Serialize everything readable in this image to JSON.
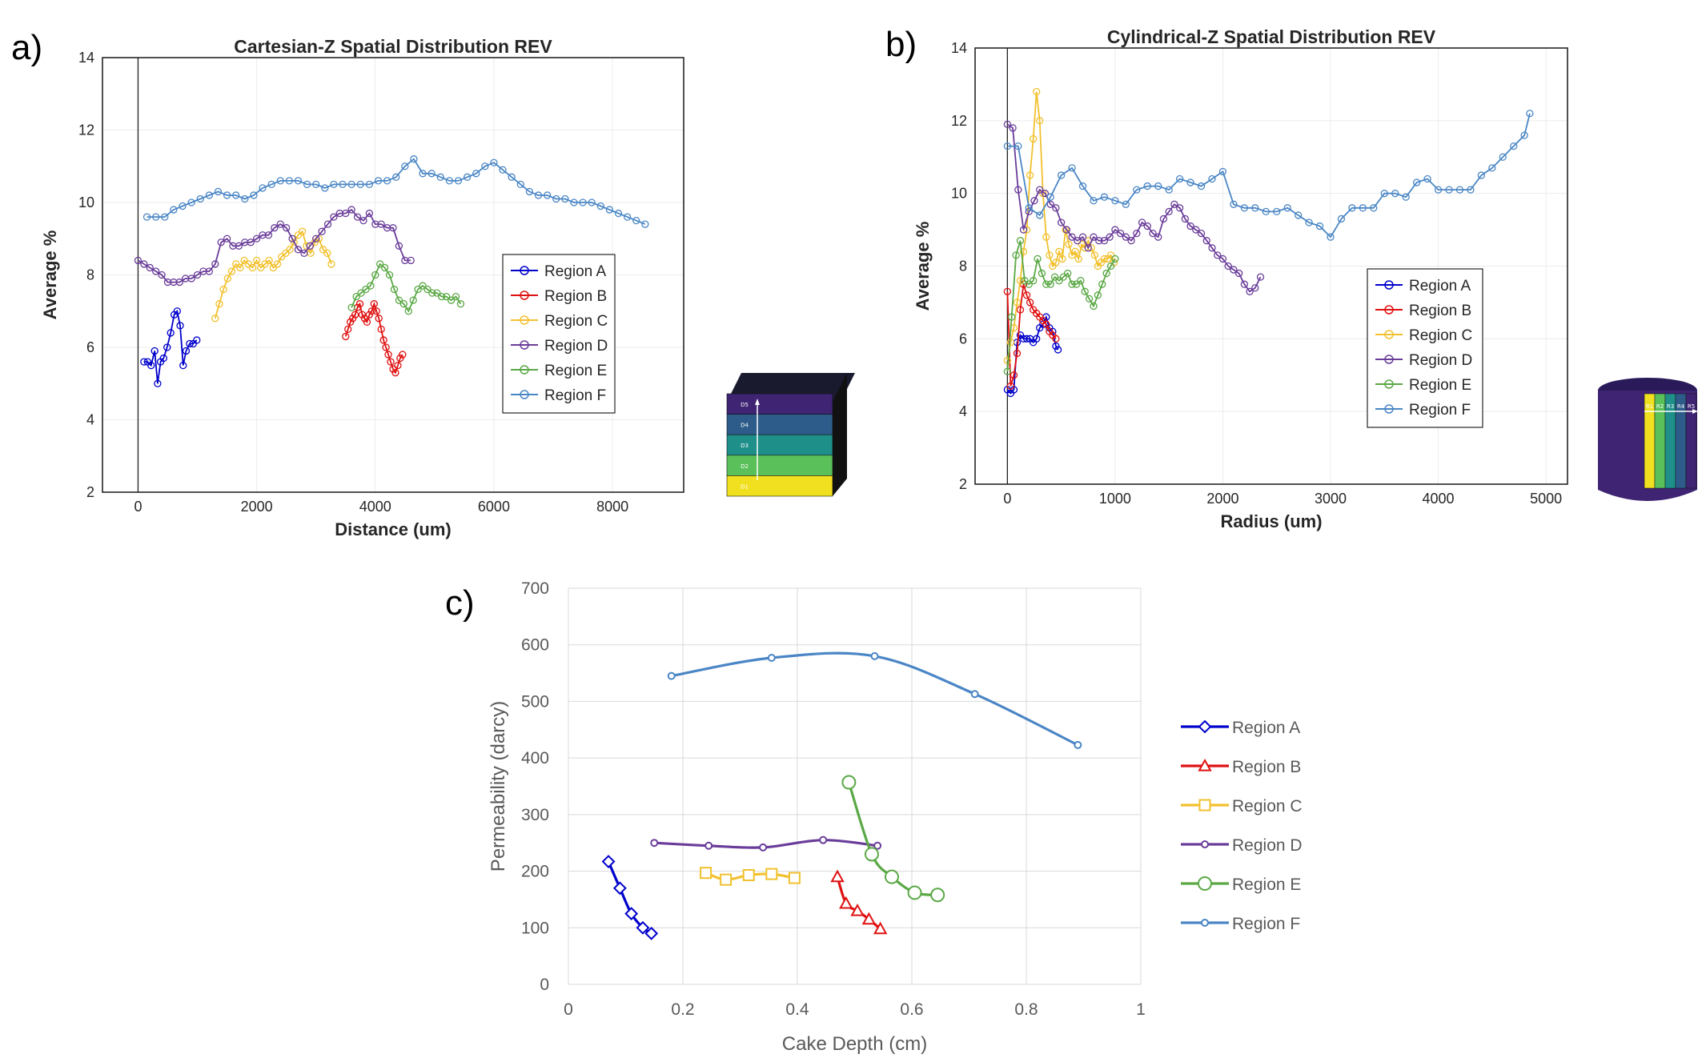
{
  "panel_letters": {
    "a": "a)",
    "b": "b)",
    "c": "c)"
  },
  "colors": {
    "Region A": "#0000cc",
    "Region B": "#e01010",
    "Region C": "#f2c12e",
    "Region D": "#6a3d9a",
    "Region E": "#5aa845",
    "Region F": "#4a86c5"
  },
  "illustrations": {
    "a": {
      "layer_labels": [
        "D5",
        "D4",
        "D3",
        "D2",
        "D1"
      ],
      "layer_colors": [
        "#3e2473",
        "#2e5c8a",
        "#1f8f8a",
        "#5ac05a",
        "#f0e020"
      ]
    },
    "b": {
      "ring_labels": [
        "R1",
        "R2",
        "R3",
        "R4",
        "R5"
      ],
      "ring_colors": [
        "#f0e020",
        "#5ac05a",
        "#1f8f8a",
        "#2e5c8a",
        "#3e2473"
      ]
    }
  },
  "chart_data": [
    {
      "type": "line",
      "title": "Cartesian-Z Spatial Distribution REV",
      "xlabel": "Distance (um)",
      "ylabel": "Average %",
      "xlim": [
        -600,
        9200
      ],
      "ylim": [
        2,
        14
      ],
      "xticks": [
        0,
        2000,
        4000,
        6000,
        8000
      ],
      "yticks": [
        2,
        4,
        6,
        8,
        10,
        12,
        14
      ],
      "grid": true,
      "legend_position": "right",
      "series": [
        {
          "name": "Region A",
          "x": [
            100,
            160,
            220,
            280,
            330,
            380,
            430,
            490,
            550,
            610,
            660,
            710,
            760,
            810,
            870,
            930,
            990
          ],
          "y": [
            5.6,
            5.6,
            5.5,
            5.9,
            5.0,
            5.6,
            5.7,
            6.0,
            6.4,
            6.9,
            7.0,
            6.6,
            5.5,
            5.9,
            6.1,
            6.1,
            6.2
          ]
        },
        {
          "name": "Region B",
          "x": [
            3500,
            3540,
            3580,
            3620,
            3660,
            3700,
            3740,
            3780,
            3820,
            3860,
            3900,
            3940,
            3980,
            4020,
            4060,
            4100,
            4140,
            4180,
            4220,
            4260,
            4300,
            4340,
            4380,
            4420,
            4460
          ],
          "y": [
            6.3,
            6.5,
            6.7,
            6.8,
            6.9,
            7.1,
            7.2,
            6.9,
            6.8,
            6.7,
            6.9,
            7.0,
            7.2,
            7.0,
            6.8,
            6.5,
            6.2,
            6.0,
            5.8,
            5.6,
            5.4,
            5.3,
            5.5,
            5.7,
            5.8
          ]
        },
        {
          "name": "Region C",
          "x": [
            1300,
            1370,
            1440,
            1510,
            1580,
            1650,
            1720,
            1790,
            1860,
            1930,
            2000,
            2070,
            2140,
            2210,
            2280,
            2350,
            2420,
            2490,
            2560,
            2630,
            2700,
            2770,
            2840,
            2910,
            2980,
            3050,
            3120,
            3190,
            3260
          ],
          "y": [
            6.8,
            7.2,
            7.6,
            7.9,
            8.1,
            8.3,
            8.2,
            8.4,
            8.3,
            8.2,
            8.4,
            8.2,
            8.3,
            8.4,
            8.2,
            8.3,
            8.5,
            8.6,
            8.7,
            8.9,
            9.1,
            9.2,
            8.8,
            8.6,
            8.9,
            9.0,
            8.7,
            8.6,
            8.3
          ]
        },
        {
          "name": "Region D",
          "x": [
            0,
            100,
            200,
            300,
            400,
            500,
            600,
            700,
            800,
            900,
            1000,
            1100,
            1200,
            1300,
            1400,
            1500,
            1600,
            1700,
            1800,
            1900,
            2000,
            2100,
            2200,
            2300,
            2400,
            2500,
            2600,
            2700,
            2800,
            2900,
            3000,
            3100,
            3200,
            3300,
            3400,
            3500,
            3600,
            3700,
            3800,
            3900,
            4000,
            4100,
            4200,
            4300,
            4400,
            4500,
            4600
          ],
          "y": [
            8.4,
            8.3,
            8.2,
            8.1,
            8.0,
            7.8,
            7.8,
            7.8,
            7.9,
            7.9,
            8.0,
            8.1,
            8.1,
            8.3,
            8.9,
            9.0,
            8.8,
            8.8,
            8.9,
            8.9,
            9.0,
            9.1,
            9.1,
            9.3,
            9.4,
            9.3,
            9.0,
            8.7,
            8.6,
            8.8,
            9.0,
            9.2,
            9.4,
            9.6,
            9.7,
            9.7,
            9.8,
            9.6,
            9.5,
            9.7,
            9.4,
            9.4,
            9.3,
            9.3,
            8.8,
            8.4,
            8.4
          ]
        },
        {
          "name": "Region E",
          "x": [
            3600,
            3680,
            3760,
            3840,
            3920,
            4000,
            4080,
            4160,
            4240,
            4320,
            4400,
            4480,
            4560,
            4640,
            4720,
            4800,
            4880,
            4960,
            5040,
            5120,
            5200,
            5280,
            5360,
            5440
          ],
          "y": [
            7.1,
            7.4,
            7.5,
            7.6,
            7.7,
            8.0,
            8.3,
            8.2,
            8.0,
            7.6,
            7.3,
            7.2,
            7.0,
            7.3,
            7.6,
            7.7,
            7.6,
            7.5,
            7.5,
            7.4,
            7.4,
            7.3,
            7.4,
            7.2
          ]
        },
        {
          "name": "Region F",
          "x": [
            150,
            300,
            450,
            600,
            750,
            900,
            1050,
            1200,
            1350,
            1500,
            1650,
            1800,
            1950,
            2100,
            2250,
            2400,
            2550,
            2700,
            2850,
            3000,
            3150,
            3300,
            3450,
            3600,
            3750,
            3900,
            4050,
            4200,
            4350,
            4500,
            4650,
            4800,
            4950,
            5100,
            5250,
            5400,
            5550,
            5700,
            5850,
            6000,
            6150,
            6300,
            6450,
            6600,
            6750,
            6900,
            7050,
            7200,
            7350,
            7500,
            7650,
            7800,
            7950,
            8100,
            8250,
            8400,
            8550
          ],
          "y": [
            9.6,
            9.6,
            9.6,
            9.8,
            9.9,
            10.0,
            10.1,
            10.2,
            10.3,
            10.2,
            10.2,
            10.1,
            10.2,
            10.4,
            10.5,
            10.6,
            10.6,
            10.6,
            10.5,
            10.5,
            10.4,
            10.5,
            10.5,
            10.5,
            10.5,
            10.5,
            10.6,
            10.6,
            10.7,
            11.0,
            11.2,
            10.8,
            10.8,
            10.7,
            10.6,
            10.6,
            10.7,
            10.8,
            11.0,
            11.1,
            10.9,
            10.7,
            10.5,
            10.3,
            10.2,
            10.2,
            10.1,
            10.1,
            10.0,
            10.0,
            10.0,
            9.9,
            9.8,
            9.7,
            9.6,
            9.5,
            9.4
          ]
        }
      ]
    },
    {
      "type": "line",
      "title": "Cylindrical-Z  Spatial Distribution REV",
      "xlabel": "Radius (um)",
      "ylabel": "Average %",
      "xlim": [
        -300,
        5200
      ],
      "ylim": [
        2,
        14
      ],
      "xticks": [
        0,
        1000,
        2000,
        3000,
        4000,
        5000
      ],
      "yticks": [
        2,
        4,
        6,
        8,
        10,
        12,
        14
      ],
      "grid": true,
      "legend_position": "right",
      "series": [
        {
          "name": "Region A",
          "x": [
            0,
            30,
            60,
            90,
            120,
            150,
            180,
            210,
            240,
            270,
            300,
            330,
            360,
            390,
            420,
            450,
            470
          ],
          "y": [
            4.6,
            4.5,
            4.6,
            5.9,
            6.1,
            6.0,
            6.0,
            6.0,
            5.9,
            6.0,
            6.3,
            6.4,
            6.6,
            6.3,
            6.2,
            5.8,
            5.7
          ]
        },
        {
          "name": "Region B",
          "x": [
            0,
            30,
            60,
            90,
            120,
            150,
            180,
            210,
            240,
            270,
            300,
            330,
            360,
            390,
            420,
            450
          ],
          "y": [
            7.3,
            4.7,
            5.0,
            5.6,
            6.8,
            7.5,
            7.2,
            7.0,
            6.8,
            6.7,
            6.6,
            6.5,
            6.4,
            6.2,
            6.1,
            6.0
          ]
        },
        {
          "name": "Region C",
          "x": [
            0,
            30,
            60,
            90,
            120,
            150,
            180,
            210,
            240,
            270,
            300,
            330,
            360,
            390,
            420,
            450,
            480,
            510,
            540,
            570,
            600,
            630,
            660,
            690,
            720,
            750,
            780,
            810,
            840,
            870,
            900,
            930,
            960,
            990
          ],
          "y": [
            5.4,
            5.9,
            6.3,
            7.0,
            7.6,
            8.4,
            9.0,
            10.5,
            11.5,
            12.8,
            12.0,
            10.0,
            8.8,
            8.3,
            8.0,
            8.1,
            8.4,
            8.2,
            9.0,
            8.6,
            8.3,
            8.4,
            8.2,
            8.6,
            8.5,
            8.7,
            8.5,
            8.3,
            8.0,
            8.1,
            8.2,
            8.2,
            8.3,
            8.1
          ]
        },
        {
          "name": "Region D",
          "x": [
            0,
            50,
            100,
            150,
            200,
            250,
            300,
            350,
            400,
            450,
            500,
            550,
            600,
            650,
            700,
            750,
            800,
            850,
            900,
            950,
            1000,
            1050,
            1100,
            1150,
            1200,
            1250,
            1300,
            1350,
            1400,
            1450,
            1500,
            1550,
            1600,
            1650,
            1700,
            1750,
            1800,
            1850,
            1900,
            1950,
            2000,
            2050,
            2100,
            2150,
            2200,
            2250,
            2300,
            2350
          ],
          "y": [
            11.9,
            11.8,
            10.1,
            9.0,
            9.5,
            9.8,
            10.1,
            10.0,
            9.7,
            9.6,
            9.2,
            9.0,
            8.8,
            8.7,
            8.8,
            8.5,
            8.8,
            8.7,
            8.7,
            8.8,
            9.0,
            8.9,
            8.8,
            8.7,
            8.9,
            9.2,
            9.1,
            8.9,
            8.8,
            9.3,
            9.5,
            9.7,
            9.6,
            9.3,
            9.1,
            9.0,
            8.9,
            8.7,
            8.5,
            8.3,
            8.2,
            8.0,
            7.9,
            7.8,
            7.5,
            7.3,
            7.4,
            7.7
          ]
        },
        {
          "name": "Region E",
          "x": [
            0,
            40,
            80,
            120,
            160,
            200,
            240,
            280,
            320,
            360,
            400,
            440,
            480,
            520,
            560,
            600,
            640,
            680,
            720,
            760,
            800,
            840,
            880,
            920,
            960,
            1000
          ],
          "y": [
            5.1,
            6.6,
            8.3,
            8.7,
            7.6,
            7.5,
            7.6,
            8.2,
            7.8,
            7.5,
            7.5,
            7.7,
            7.6,
            7.7,
            7.8,
            7.5,
            7.5,
            7.6,
            7.3,
            7.1,
            6.9,
            7.2,
            7.5,
            7.8,
            8.0,
            8.2
          ]
        },
        {
          "name": "Region F",
          "x": [
            0,
            100,
            200,
            300,
            400,
            500,
            600,
            700,
            800,
            900,
            1000,
            1100,
            1200,
            1300,
            1400,
            1500,
            1600,
            1700,
            1800,
            1900,
            2000,
            2100,
            2200,
            2300,
            2400,
            2500,
            2600,
            2700,
            2800,
            2900,
            3000,
            3100,
            3200,
            3300,
            3400,
            3500,
            3600,
            3700,
            3800,
            3900,
            4000,
            4100,
            4200,
            4300,
            4400,
            4500,
            4600,
            4700,
            4800,
            4850
          ],
          "y": [
            11.3,
            11.3,
            9.6,
            9.4,
            9.9,
            10.5,
            10.7,
            10.2,
            9.8,
            9.9,
            9.8,
            9.7,
            10.1,
            10.2,
            10.2,
            10.1,
            10.4,
            10.3,
            10.2,
            10.4,
            10.6,
            9.7,
            9.6,
            9.6,
            9.5,
            9.5,
            9.6,
            9.4,
            9.2,
            9.1,
            8.8,
            9.3,
            9.6,
            9.6,
            9.6,
            10.0,
            10.0,
            9.9,
            10.3,
            10.4,
            10.1,
            10.1,
            10.1,
            10.1,
            10.5,
            10.7,
            11.0,
            11.3,
            11.6,
            12.2
          ]
        }
      ]
    },
    {
      "type": "line",
      "xlabel": "Cake Depth (cm)",
      "ylabel": "Permeability (darcy)",
      "xlim": [
        0,
        1
      ],
      "ylim": [
        0,
        700
      ],
      "xticks": [
        0,
        0.2,
        0.4,
        0.6,
        0.8,
        1
      ],
      "yticks": [
        0,
        100,
        200,
        300,
        400,
        500,
        600,
        700
      ],
      "grid": true,
      "legend_position": "right",
      "series": [
        {
          "name": "Region A",
          "marker": "diamond",
          "x": [
            0.07,
            0.09,
            0.11,
            0.13,
            0.145
          ],
          "y": [
            217,
            170,
            125,
            100,
            90
          ]
        },
        {
          "name": "Region B",
          "marker": "triangle",
          "x": [
            0.47,
            0.485,
            0.505,
            0.525,
            0.545
          ],
          "y": [
            190,
            143,
            130,
            115,
            98
          ]
        },
        {
          "name": "Region C",
          "marker": "square",
          "x": [
            0.24,
            0.275,
            0.315,
            0.355,
            0.395
          ],
          "y": [
            197,
            185,
            193,
            195,
            188
          ]
        },
        {
          "name": "Region D",
          "marker": "circle-small",
          "x": [
            0.15,
            0.245,
            0.34,
            0.445,
            0.54
          ],
          "y": [
            250,
            245,
            242,
            255,
            245
          ]
        },
        {
          "name": "Region E",
          "marker": "circle-open",
          "x": [
            0.49,
            0.53,
            0.565,
            0.605,
            0.645
          ],
          "y": [
            357,
            230,
            190,
            162,
            158
          ]
        },
        {
          "name": "Region F",
          "marker": "circle-small",
          "x": [
            0.18,
            0.355,
            0.535,
            0.71,
            0.89
          ],
          "y": [
            545,
            577,
            580,
            513,
            423
          ]
        }
      ]
    }
  ]
}
